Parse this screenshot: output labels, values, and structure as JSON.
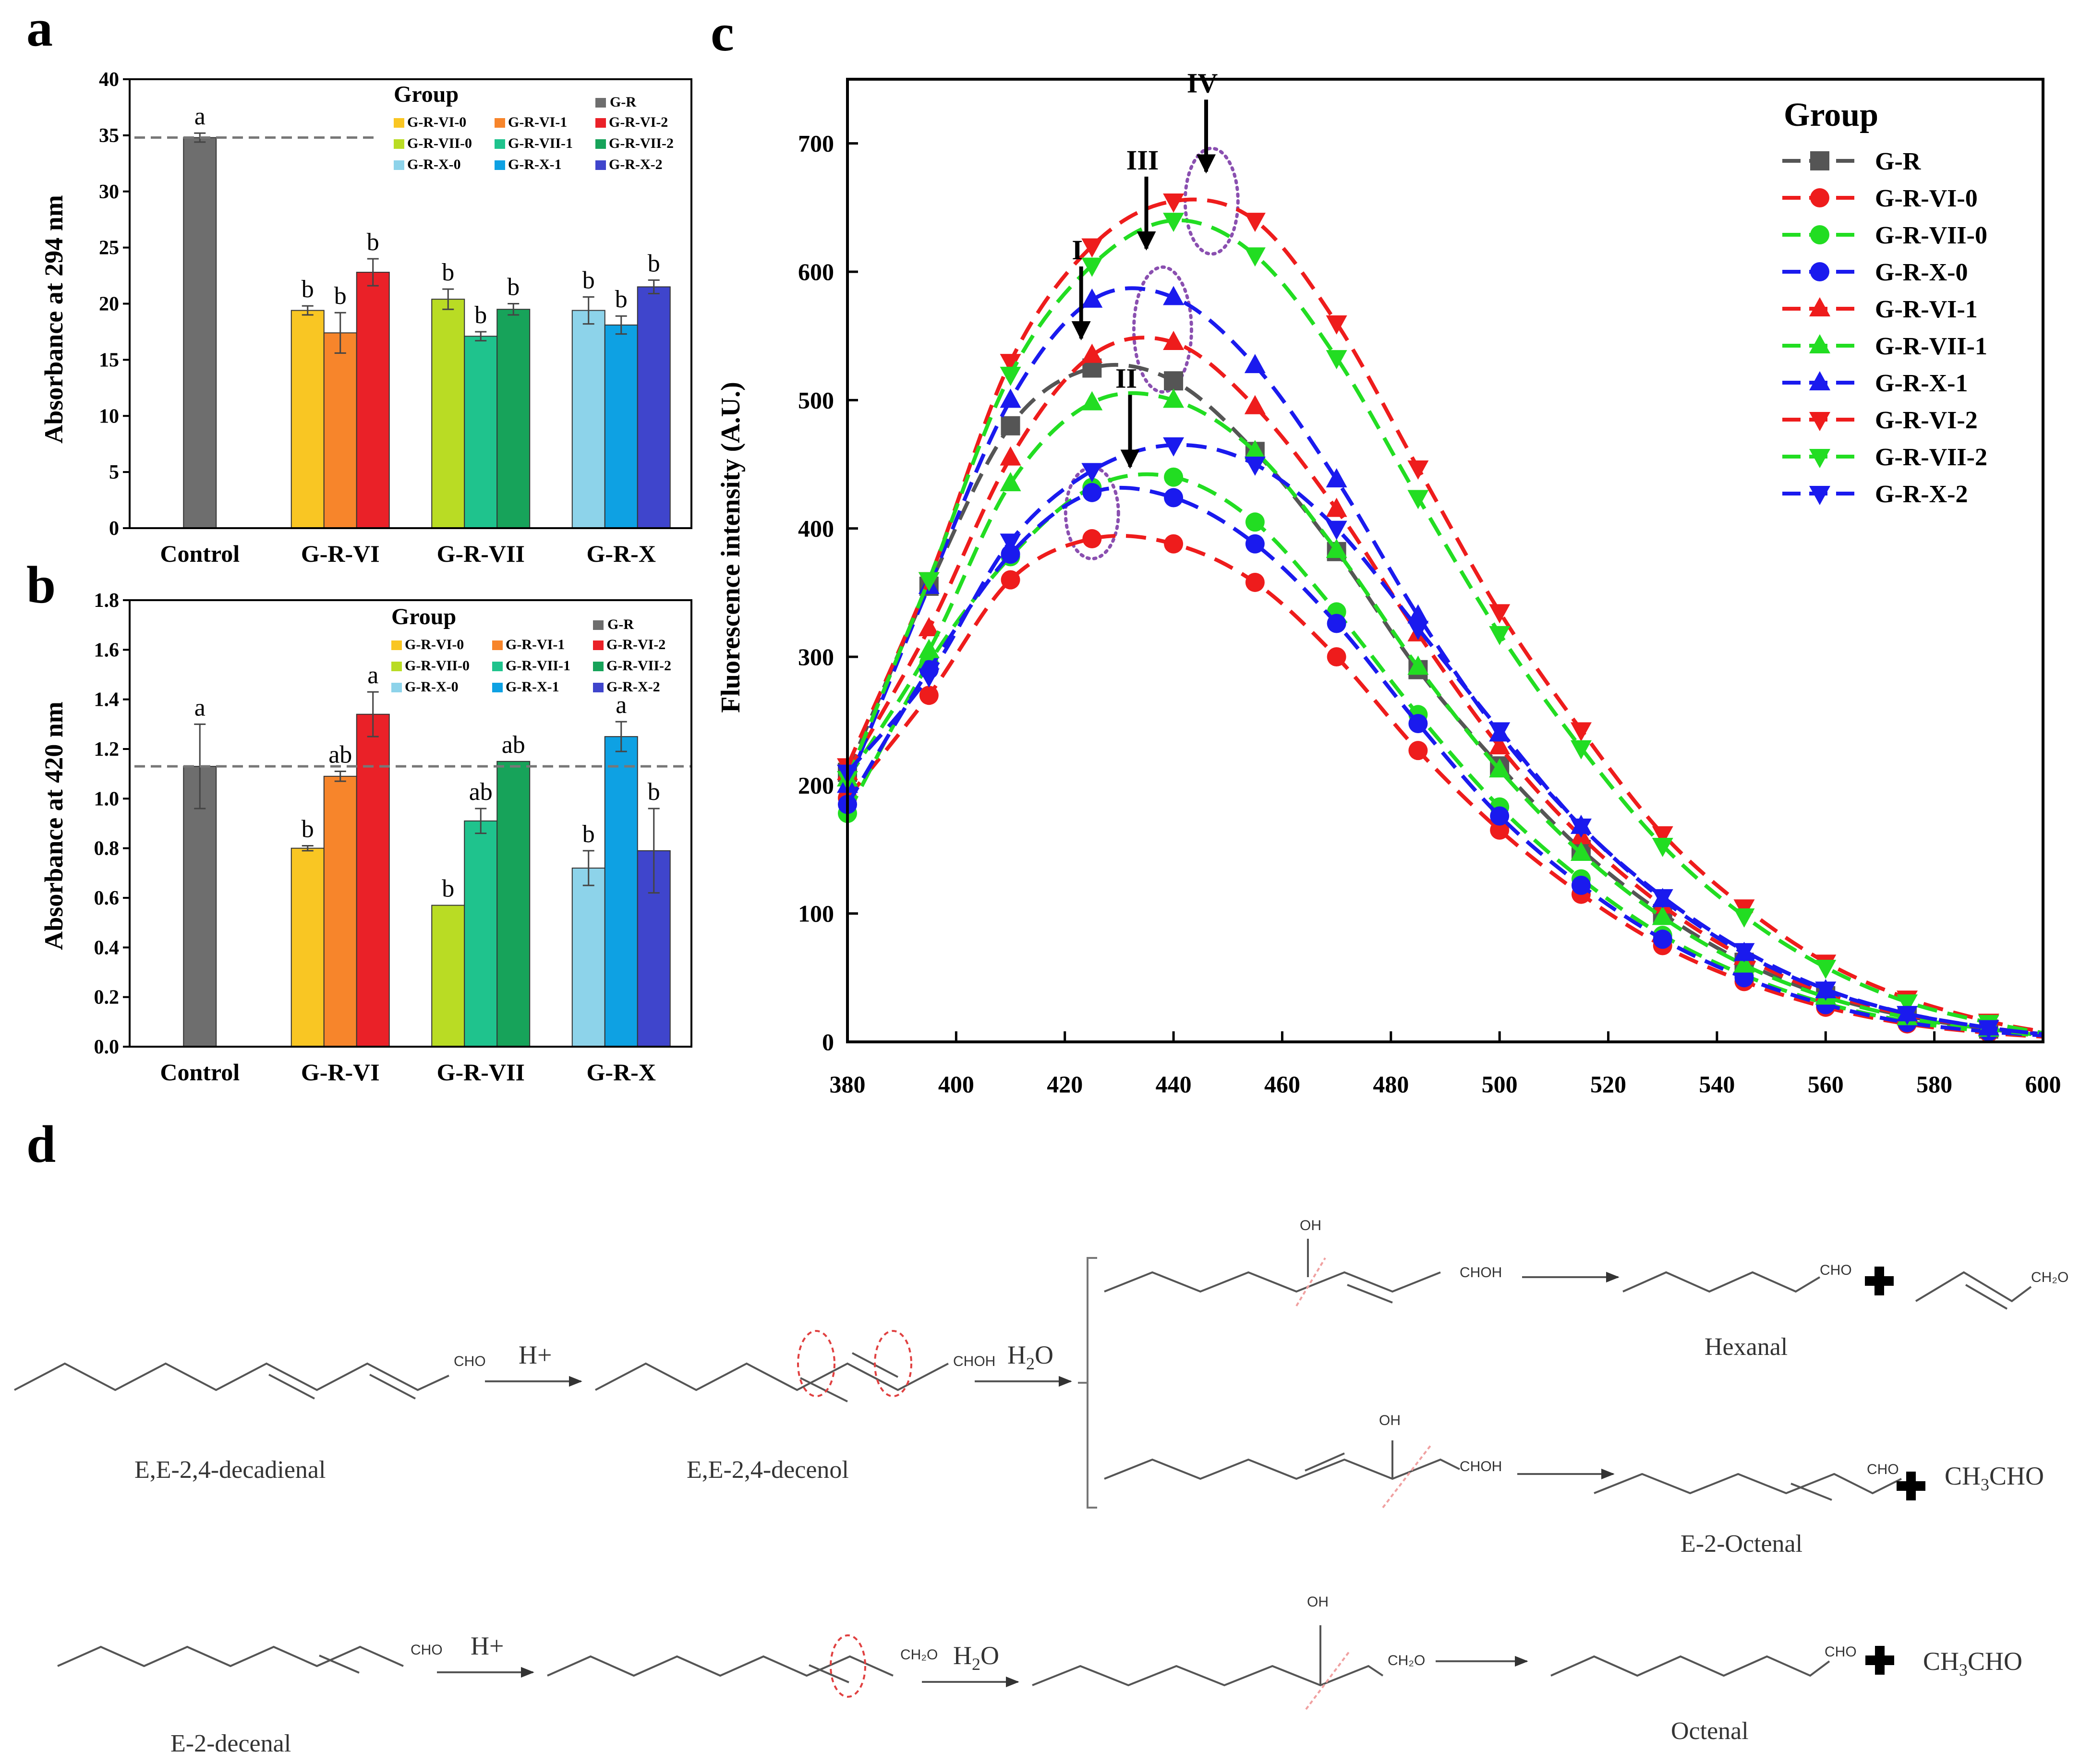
{
  "panels": {
    "a": "a",
    "b": "b",
    "c": "c",
    "d": "d"
  },
  "chart_data": [
    {
      "id": "a",
      "type": "bar",
      "ylabel": "Absorbance at 294 nm",
      "ylim": [
        0,
        40
      ],
      "yticks": [
        0,
        5,
        10,
        15,
        20,
        25,
        30,
        35,
        40
      ],
      "categories": [
        "Control",
        "G-R-VI",
        "G-R-VII",
        "G-R-X"
      ],
      "reference_line": 34.8,
      "legend_title": "Group",
      "bars": [
        {
          "group": "G-R",
          "cat": 0,
          "slot": 1,
          "value": 34.8,
          "err": 0.4,
          "letter": "a",
          "color": "#6e6e6e"
        },
        {
          "group": "G-R-VI-0",
          "cat": 1,
          "slot": 0,
          "value": 19.4,
          "err": 0.4,
          "letter": "b",
          "color": "#f9c623"
        },
        {
          "group": "G-R-VI-1",
          "cat": 1,
          "slot": 1,
          "value": 17.4,
          "err": 1.8,
          "letter": "b",
          "color": "#f7852b"
        },
        {
          "group": "G-R-VI-2",
          "cat": 1,
          "slot": 2,
          "value": 22.8,
          "err": 1.2,
          "letter": "b",
          "color": "#ea2128"
        },
        {
          "group": "G-R-VII-0",
          "cat": 2,
          "slot": 0,
          "value": 20.4,
          "err": 0.9,
          "letter": "b",
          "color": "#b9dc24"
        },
        {
          "group": "G-R-VII-1",
          "cat": 2,
          "slot": 1,
          "value": 17.1,
          "err": 0.4,
          "letter": "b",
          "color": "#1fc38d"
        },
        {
          "group": "G-R-VII-2",
          "cat": 2,
          "slot": 2,
          "value": 19.5,
          "err": 0.5,
          "letter": "b",
          "color": "#17a35a"
        },
        {
          "group": "G-R-X-0",
          "cat": 3,
          "slot": 0,
          "value": 19.4,
          "err": 1.2,
          "letter": "b",
          "color": "#8dd3ea"
        },
        {
          "group": "G-R-X-1",
          "cat": 3,
          "slot": 1,
          "value": 18.1,
          "err": 0.8,
          "letter": "b",
          "color": "#0ea1e3"
        },
        {
          "group": "G-R-X-2",
          "cat": 3,
          "slot": 2,
          "value": 21.5,
          "err": 0.6,
          "letter": "b",
          "color": "#3f45cc"
        }
      ]
    },
    {
      "id": "b",
      "type": "bar",
      "ylabel": "Absorbance at 420 nm",
      "ylim": [
        0,
        1.8
      ],
      "yticks": [
        0.0,
        0.2,
        0.4,
        0.6,
        0.8,
        1.0,
        1.2,
        1.4,
        1.6,
        1.8
      ],
      "categories": [
        "Control",
        "G-R-VI",
        "G-R-VII",
        "G-R-X"
      ],
      "reference_line": 1.13,
      "legend_title": "Group",
      "bars": [
        {
          "group": "G-R",
          "cat": 0,
          "slot": 1,
          "value": 1.13,
          "err": 0.17,
          "letter": "a",
          "color": "#6e6e6e"
        },
        {
          "group": "G-R-VI-0",
          "cat": 1,
          "slot": 0,
          "value": 0.8,
          "err": 0.01,
          "letter": "b",
          "color": "#f9c623"
        },
        {
          "group": "G-R-VI-1",
          "cat": 1,
          "slot": 1,
          "value": 1.09,
          "err": 0.02,
          "letter": "ab",
          "color": "#f7852b"
        },
        {
          "group": "G-R-VI-2",
          "cat": 1,
          "slot": 2,
          "value": 1.34,
          "err": 0.09,
          "letter": "a",
          "color": "#ea2128"
        },
        {
          "group": "G-R-VII-0",
          "cat": 2,
          "slot": 0,
          "value": 0.57,
          "err": 0.0,
          "letter": "b",
          "color": "#b9dc24"
        },
        {
          "group": "G-R-VII-1",
          "cat": 2,
          "slot": 1,
          "value": 0.91,
          "err": 0.05,
          "letter": "ab",
          "color": "#1fc38d"
        },
        {
          "group": "G-R-VII-2",
          "cat": 2,
          "slot": 2,
          "value": 1.15,
          "err": 0.0,
          "letter": "ab",
          "color": "#17a35a"
        },
        {
          "group": "G-R-X-0",
          "cat": 3,
          "slot": 0,
          "value": 0.72,
          "err": 0.07,
          "letter": "b",
          "color": "#8dd3ea"
        },
        {
          "group": "G-R-X-1",
          "cat": 3,
          "slot": 1,
          "value": 1.25,
          "err": 0.06,
          "letter": "a",
          "color": "#0ea1e3"
        },
        {
          "group": "G-R-X-2",
          "cat": 3,
          "slot": 2,
          "value": 0.79,
          "err": 0.17,
          "letter": "b",
          "color": "#3f45cc"
        }
      ]
    },
    {
      "id": "c",
      "type": "line",
      "ylabel": "Fluorescence intensity (A.U.)",
      "xlim": [
        380,
        600
      ],
      "ylim": [
        0,
        750
      ],
      "xticks": [
        380,
        400,
        420,
        440,
        460,
        480,
        500,
        520,
        540,
        560,
        580,
        600
      ],
      "yticks": [
        0,
        100,
        200,
        300,
        400,
        500,
        600,
        700
      ],
      "x": [
        380,
        395,
        410,
        425,
        440,
        455,
        470,
        485,
        500,
        515,
        530,
        545,
        560,
        575,
        590,
        600
      ],
      "legend_title": "Group",
      "series": [
        {
          "name": "G-R",
          "color": "#555555",
          "marker": "square",
          "values": [
            210,
            355,
            480,
            525,
            515,
            460,
            382,
            290,
            215,
            150,
            100,
            62,
            36,
            20,
            10,
            6
          ]
        },
        {
          "name": "G-R-VI-0",
          "color": "#ee1c1c",
          "marker": "circle",
          "values": [
            190,
            270,
            360,
            392,
            388,
            358,
            300,
            227,
            165,
            115,
            75,
            47,
            27,
            14,
            7,
            4
          ]
        },
        {
          "name": "G-R-VII-0",
          "color": "#22dd22",
          "marker": "circle",
          "values": [
            178,
            295,
            378,
            432,
            440,
            405,
            335,
            255,
            183,
            127,
            83,
            52,
            30,
            16,
            8,
            5
          ]
        },
        {
          "name": "G-R-X-0",
          "color": "#1a1aee",
          "marker": "circle",
          "values": [
            185,
            290,
            380,
            428,
            424,
            388,
            326,
            248,
            176,
            122,
            80,
            50,
            29,
            15,
            8,
            5
          ]
        },
        {
          "name": "G-R-VI-1",
          "color": "#ee1c1c",
          "marker": "triangle-up",
          "values": [
            210,
            322,
            455,
            535,
            545,
            495,
            415,
            318,
            230,
            160,
            106,
            66,
            38,
            21,
            11,
            6
          ]
        },
        {
          "name": "G-R-VII-1",
          "color": "#22dd22",
          "marker": "triangle-up",
          "values": [
            205,
            305,
            435,
            498,
            500,
            460,
            383,
            292,
            212,
            147,
            97,
            60,
            35,
            19,
            10,
            5
          ]
        },
        {
          "name": "G-R-X-1",
          "color": "#1a1aee",
          "marker": "triangle-up",
          "values": [
            200,
            355,
            500,
            578,
            580,
            527,
            438,
            332,
            240,
            168,
            111,
            69,
            40,
            22,
            11,
            6
          ]
        },
        {
          "name": "G-R-VI-2",
          "color": "#ee1c1c",
          "marker": "triangle-down",
          "values": [
            215,
            360,
            530,
            620,
            655,
            640,
            560,
            447,
            335,
            243,
            162,
            105,
            62,
            34,
            16,
            8
          ]
        },
        {
          "name": "G-R-VII-2",
          "color": "#22dd22",
          "marker": "triangle-down",
          "values": [
            205,
            360,
            520,
            605,
            640,
            613,
            533,
            424,
            318,
            229,
            153,
            98,
            58,
            31,
            15,
            7
          ]
        },
        {
          "name": "G-R-X-2",
          "color": "#1a1aee",
          "marker": "triangle-down",
          "values": [
            210,
            285,
            390,
            445,
            465,
            450,
            400,
            322,
            243,
            168,
            113,
            71,
            41,
            22,
            11,
            6
          ]
        }
      ],
      "annotations": [
        {
          "label": "I",
          "x": 423,
          "y": 548
        },
        {
          "label": "II",
          "x": 432,
          "y": 448
        },
        {
          "label": "III",
          "x": 435,
          "y": 618
        },
        {
          "label": "IV",
          "x": 446,
          "y": 678
        }
      ]
    }
  ],
  "scheme": {
    "reagents": {
      "h_plus": "H+",
      "water": "H₂O",
      "water_sub": "2",
      "water_h": "H",
      "water_o": "O"
    },
    "compounds": {
      "decadienal": "E,E-2,4-decadienal",
      "decenol": "E,E-2,4-decenol",
      "hexanal": "Hexanal",
      "octenal": "E-2-Octenal",
      "decenal": "E-2-decenal",
      "octenal2": "Octenal"
    },
    "groups": {
      "cho": "CHO",
      "choh": "CHOH",
      "ch2o": "CH₂O",
      "oh": "OH"
    },
    "acetaldehyde": {
      "main": "CH",
      "sub": "3",
      "end": "CHO"
    }
  }
}
